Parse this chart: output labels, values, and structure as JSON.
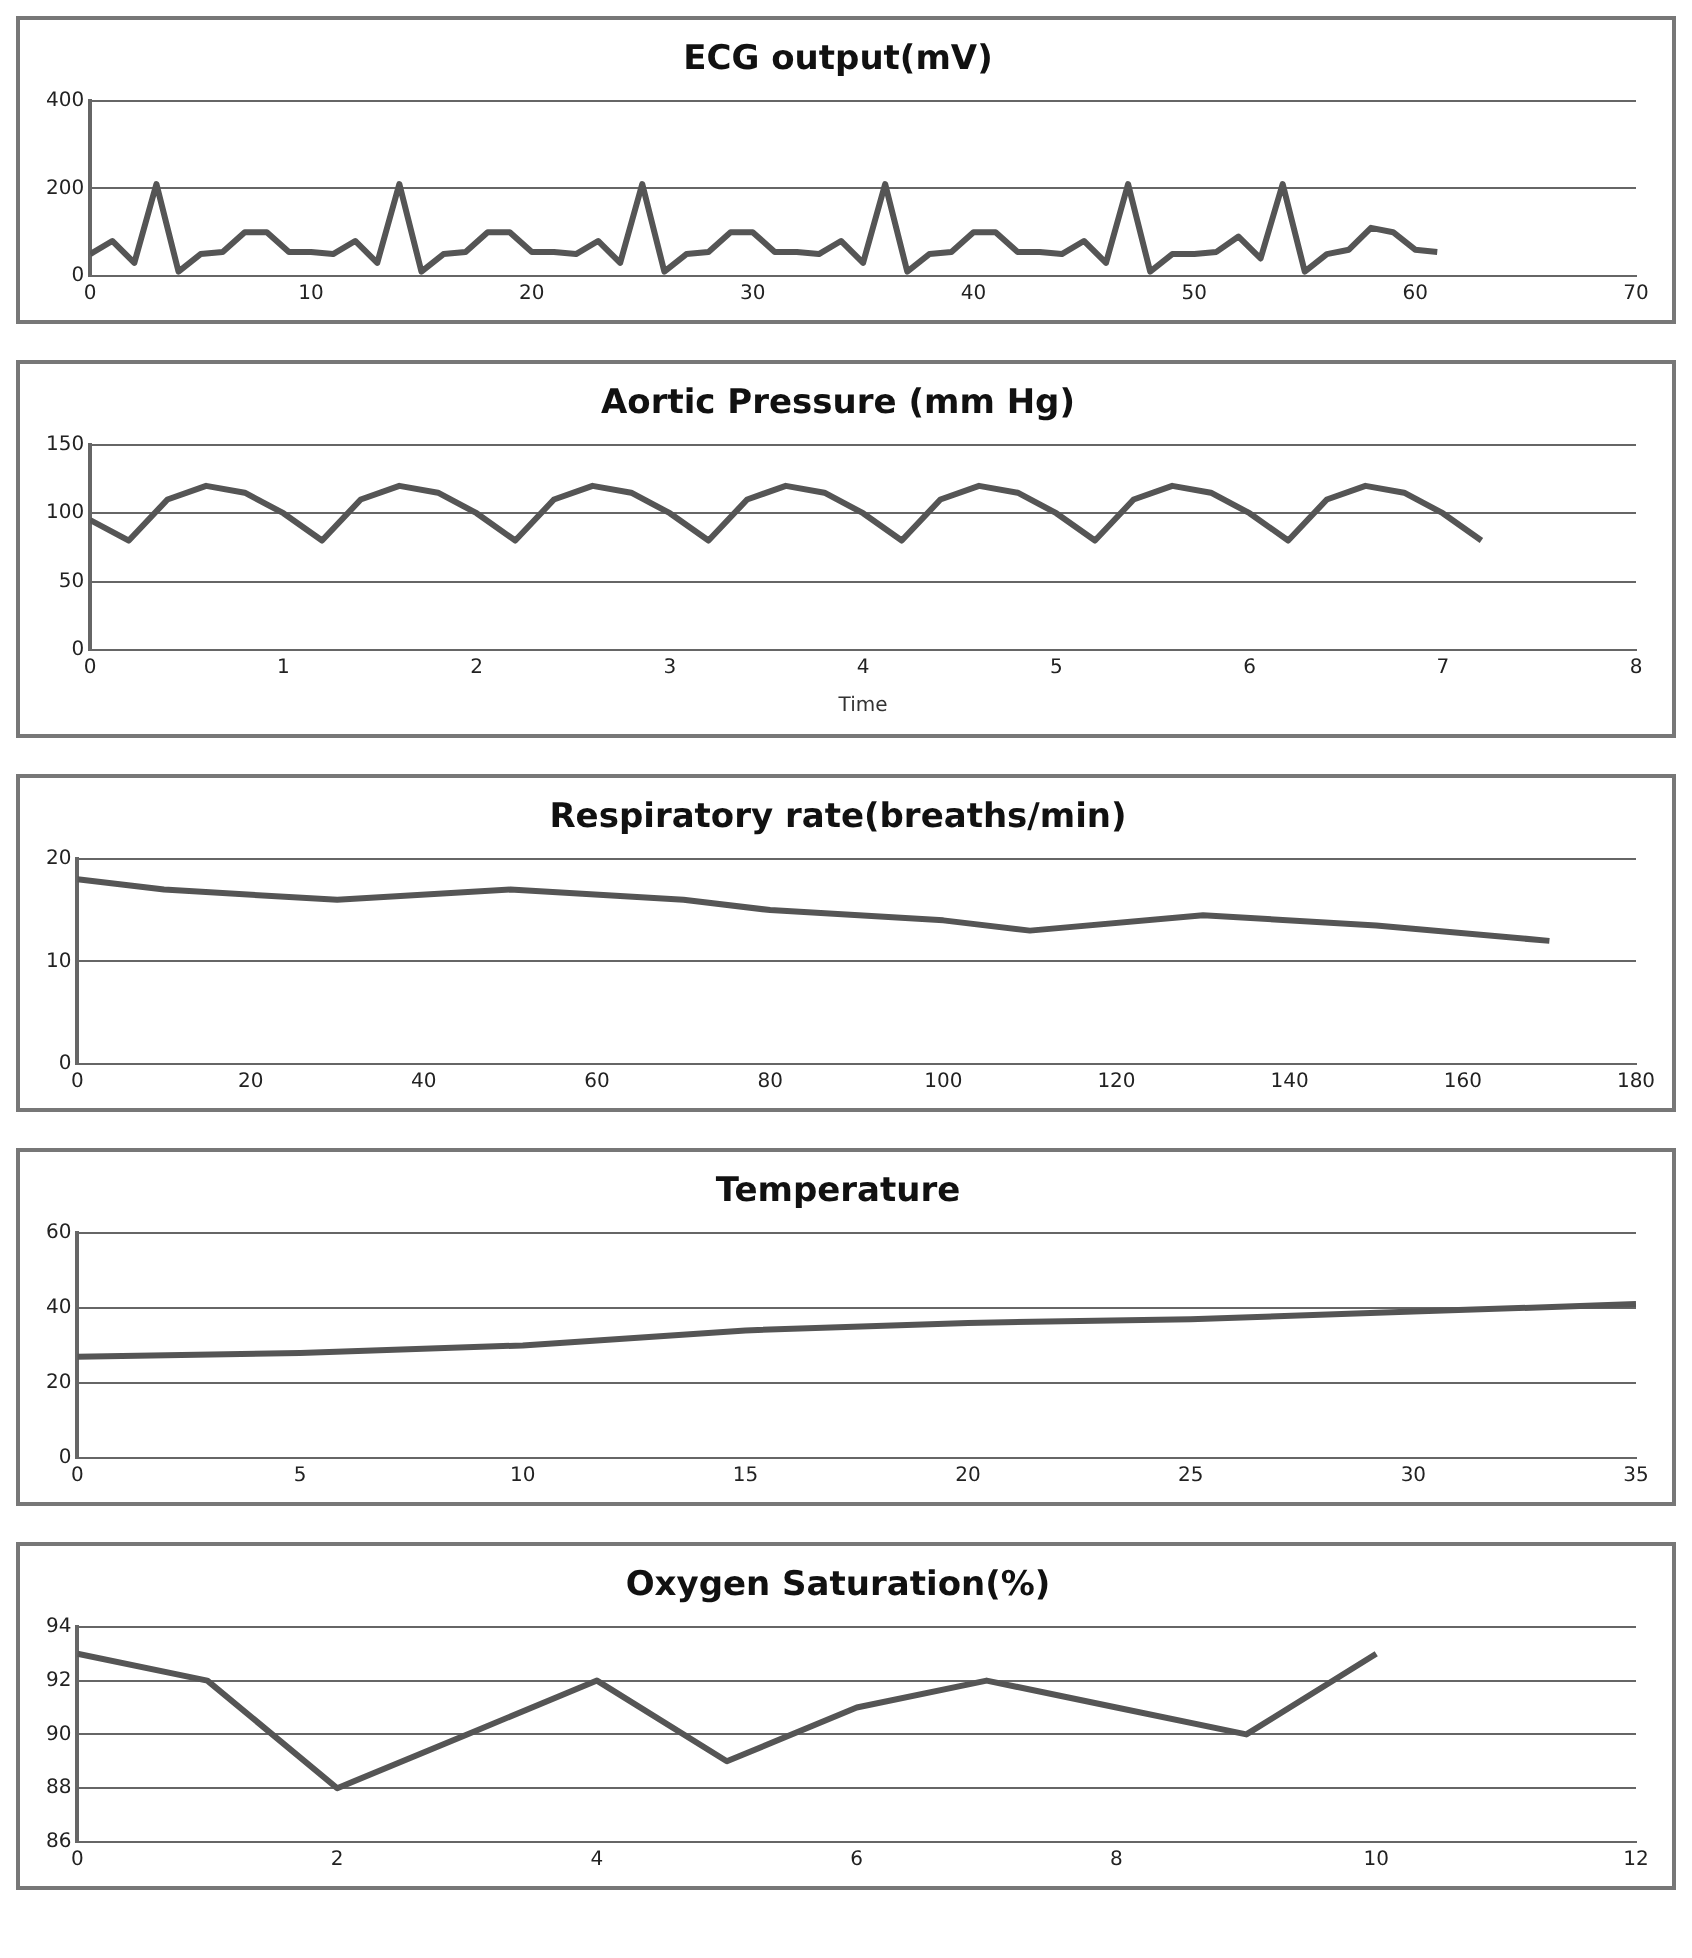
{
  "chart_data": [
    {
      "type": "line",
      "title": "ECG output(mV)",
      "x": [
        0,
        1,
        2,
        3,
        4,
        5,
        6,
        7,
        8,
        9,
        10,
        11,
        12,
        13,
        14,
        15,
        16,
        17,
        18,
        19,
        20,
        21,
        22,
        23,
        24,
        25,
        26,
        27,
        28,
        29,
        30,
        31,
        32,
        33,
        34,
        35,
        36,
        37,
        38,
        39,
        40,
        41,
        42,
        43,
        44,
        45,
        46,
        47,
        48,
        49,
        50,
        51,
        52,
        53,
        54,
        55,
        56,
        57,
        58,
        59,
        60,
        61
      ],
      "series": [
        {
          "color": "#555555",
          "values": [
            50,
            80,
            30,
            210,
            10,
            50,
            55,
            100,
            100,
            55,
            55,
            50,
            80,
            30,
            210,
            10,
            50,
            55,
            100,
            100,
            55,
            55,
            50,
            80,
            30,
            210,
            10,
            50,
            55,
            100,
            100,
            55,
            55,
            50,
            80,
            30,
            210,
            10,
            50,
            55,
            100,
            100,
            55,
            55,
            50,
            80,
            30,
            210,
            10,
            50,
            50,
            55,
            90,
            40,
            210,
            10,
            50,
            60,
            110,
            100,
            60,
            55
          ]
        }
      ],
      "xlim": [
        0,
        70
      ],
      "xticks": [
        0,
        10,
        20,
        30,
        40,
        50,
        60,
        70
      ],
      "ylim": [
        0,
        400
      ],
      "yticks": [
        0,
        200,
        400
      ],
      "grid": "y",
      "legend": false,
      "marker": "none"
    },
    {
      "type": "line",
      "title": "Aortic Pressure (mm Hg)",
      "xlabel": "Time",
      "x": [
        0,
        0.2,
        0.4,
        0.6,
        0.8,
        1,
        1.2,
        1.4,
        1.6,
        1.8,
        2,
        2.2,
        2.4,
        2.6,
        2.8,
        3,
        3.2,
        3.4,
        3.6,
        3.8,
        4,
        4.2,
        4.4,
        4.6,
        4.8,
        5,
        5.2,
        5.4,
        5.6,
        5.8,
        6,
        6.2,
        6.4,
        6.6,
        6.8,
        7,
        7.2
      ],
      "series": [
        {
          "color": "#555555",
          "values": [
            95,
            80,
            110,
            120,
            115,
            100,
            80,
            110,
            120,
            115,
            100,
            80,
            110,
            120,
            115,
            100,
            80,
            110,
            120,
            115,
            100,
            80,
            110,
            120,
            115,
            100,
            80,
            110,
            120,
            115,
            100,
            80,
            110,
            120,
            115,
            100,
            80
          ]
        }
      ],
      "xlim": [
        0,
        8
      ],
      "xticks": [
        0,
        1,
        2,
        3,
        4,
        5,
        6,
        7,
        8
      ],
      "ylim": [
        0,
        150
      ],
      "yticks": [
        0,
        50,
        100,
        150
      ],
      "grid": "y",
      "legend": false,
      "marker": "none"
    },
    {
      "type": "line",
      "title": "Respiratory rate(breaths/min)",
      "x": [
        0,
        10,
        30,
        50,
        70,
        80,
        100,
        110,
        130,
        150,
        170
      ],
      "series": [
        {
          "color": "#555555",
          "values": [
            18,
            17,
            16,
            17,
            16,
            15,
            14,
            13,
            14.5,
            13.5,
            12
          ]
        }
      ],
      "xlim": [
        0,
        180
      ],
      "xticks": [
        0,
        20,
        40,
        60,
        80,
        100,
        120,
        140,
        160,
        180
      ],
      "ylim": [
        0,
        20
      ],
      "yticks": [
        0,
        10,
        20
      ],
      "grid": "y",
      "legend": false,
      "marker": "none"
    },
    {
      "type": "line",
      "title": "Temperature",
      "x": [
        0,
        5,
        10,
        15,
        20,
        25,
        30,
        35
      ],
      "series": [
        {
          "color": "#555555",
          "values": [
            27,
            28,
            30,
            34,
            36,
            37,
            39,
            41
          ]
        }
      ],
      "xlim": [
        0,
        35
      ],
      "xticks": [
        0,
        5,
        10,
        15,
        20,
        25,
        30,
        35
      ],
      "ylim": [
        0,
        60
      ],
      "yticks": [
        0,
        20,
        40,
        60
      ],
      "grid": "y",
      "legend": false,
      "marker": "none"
    },
    {
      "type": "line",
      "title": "Oxygen Saturation(%)",
      "x": [
        0,
        1,
        2,
        3,
        4,
        5,
        6,
        7,
        8,
        9,
        10
      ],
      "series": [
        {
          "color": "#555555",
          "values": [
            93,
            92,
            88,
            90,
            92,
            89,
            91,
            92,
            91,
            90,
            93
          ]
        }
      ],
      "xlim": [
        0,
        12
      ],
      "xticks": [
        0,
        2,
        4,
        6,
        8,
        10,
        12
      ],
      "ylim": [
        86,
        94
      ],
      "yticks": [
        86,
        88,
        90,
        92,
        94
      ],
      "grid": "y",
      "legend": false,
      "marker": "none"
    }
  ]
}
